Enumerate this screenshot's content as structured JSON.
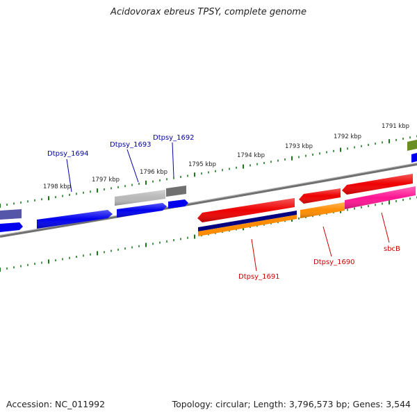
{
  "header": {
    "title": "Acidovorax ebreus TPSY, complete genome"
  },
  "footer": {
    "accession": "Accession: NC_011992",
    "summary": "Topology: circular; Length: 3,796,573 bp; Genes: 3,544"
  },
  "scale": {
    "ticks": [
      "1798 kbp",
      "1797 kbp",
      "1796 kbp",
      "1795 kbp",
      "1794 kbp",
      "1793 kbp",
      "1792 kbp",
      "1791 kbp"
    ]
  },
  "genes": {
    "labels": [
      "Dtpsy_1694",
      "Dtpsy_1693",
      "Dtpsy_1692",
      "Dtpsy_1691",
      "Dtpsy_1690",
      "sbcB"
    ],
    "colors": {
      "blue_label": "#0000aa",
      "red_label": "#cc0000",
      "blue": "#0000ee",
      "red": "#ee0000",
      "orange": "#ff8c00",
      "magenta": "#ff1493",
      "navy": "#000080",
      "gray_light": "#b8b8b8",
      "gray_dark": "#707070",
      "purple": "#5555aa",
      "olive": "#6b8e23",
      "tick_green": "#1a7a1a"
    }
  }
}
